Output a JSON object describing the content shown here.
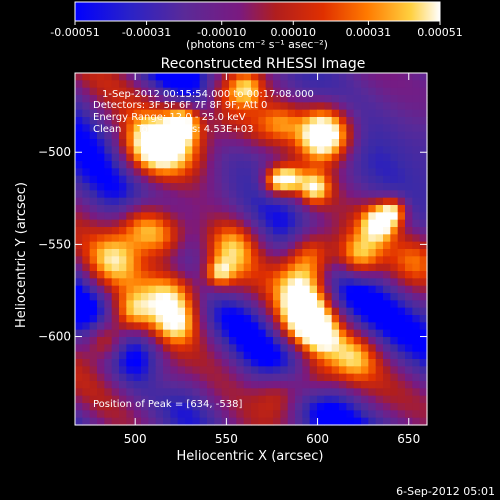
{
  "chart_data": {
    "type": "heatmap",
    "title": "Reconstructed RHESSI Image",
    "xlabel": "Heliocentric X (arcsec)",
    "ylabel": "Heliocentric Y (arcsec)",
    "xlim": [
      467,
      660
    ],
    "ylim": [
      -648,
      -457
    ],
    "x_ticks": [
      500,
      550,
      600,
      650
    ],
    "y_ticks": [
      -500,
      -550,
      -600
    ],
    "colorbar": {
      "ticks": [
        "-0.00051",
        "-0.00031",
        "-0.00010",
        "0.00010",
        "0.00031",
        "0.00051"
      ],
      "tick_values": [
        -0.00051,
        -0.00031,
        -0.0001,
        0.0001,
        0.00031,
        0.00051
      ],
      "label": "(photons cm⁻² s⁻¹ asec⁻²)",
      "range": [
        -0.00051,
        0.00051
      ],
      "colormap": [
        "#0000ff",
        "#3a2aa8",
        "#5a2a98",
        "#7a1a80",
        "#b01e1e",
        "#e03000",
        "#ff7a00",
        "#ffd040",
        "#ffffff"
      ]
    },
    "annotations": [
      "1-Sep-2012 00:15:54.000 to 00:17:08.000",
      "Detectors: 3F 5F 6F 7F 8F 9F, Att 0",
      "Energy Range: 12.0 - 25.0 keV",
      "Clean     Total counts: 4.53E+03"
    ],
    "peak_text": "Position of Peak = [634, -538]",
    "peak": [
      634,
      -538
    ],
    "peak_value": 0.00051,
    "grid": false
  },
  "timestamp": "6-Sep-2012 05:01"
}
